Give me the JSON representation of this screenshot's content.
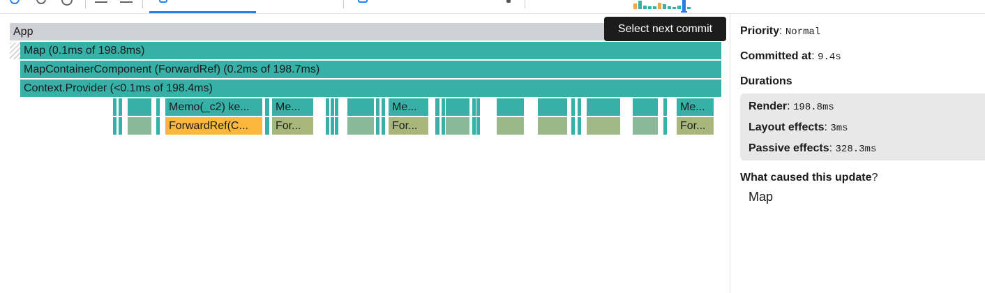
{
  "tooltip": {
    "text": "Select next commit"
  },
  "flamegraph": {
    "bars": [
      {
        "label": "App",
        "color": "#d0d1d6"
      },
      {
        "label": "Map (0.1ms of 198.8ms)",
        "color": "#37b1a7"
      },
      {
        "label": "MapContainerComponent (ForwardRef) (0.2ms of 198.7ms)",
        "color": "#37b1a7"
      },
      {
        "label": "Context.Provider (<0.1ms of 198.4ms)",
        "color": "#37b1a7"
      },
      {
        "label": "Memo(_c2) ke...",
        "color": "#37b1a7"
      },
      {
        "label": "Me...",
        "color": "#37b1a7"
      },
      {
        "label": "Me...",
        "color": "#37b1a7"
      },
      {
        "label": "Me...",
        "color": "#37b1a7"
      },
      {
        "label": "ForwardRef(C...",
        "color": "#fbb73c"
      },
      {
        "label": "For...",
        "color": "#a8b67c"
      },
      {
        "label": "For...",
        "color": "#a8b67c"
      },
      {
        "label": "For...",
        "color": "#a8b67c"
      }
    ]
  },
  "side_panel": {
    "priority_label": "Priority",
    "priority_value": "Normal",
    "committed_label": "Committed at",
    "committed_value": "9.4s",
    "durations_label": "Durations",
    "render_label": "Render",
    "render_value": "198.8ms",
    "layout_label": "Layout effects",
    "layout_value": "3ms",
    "passive_label": "Passive effects",
    "passive_value": "328.3ms",
    "cause_label": "What caused this update",
    "cause_value": "Map"
  }
}
